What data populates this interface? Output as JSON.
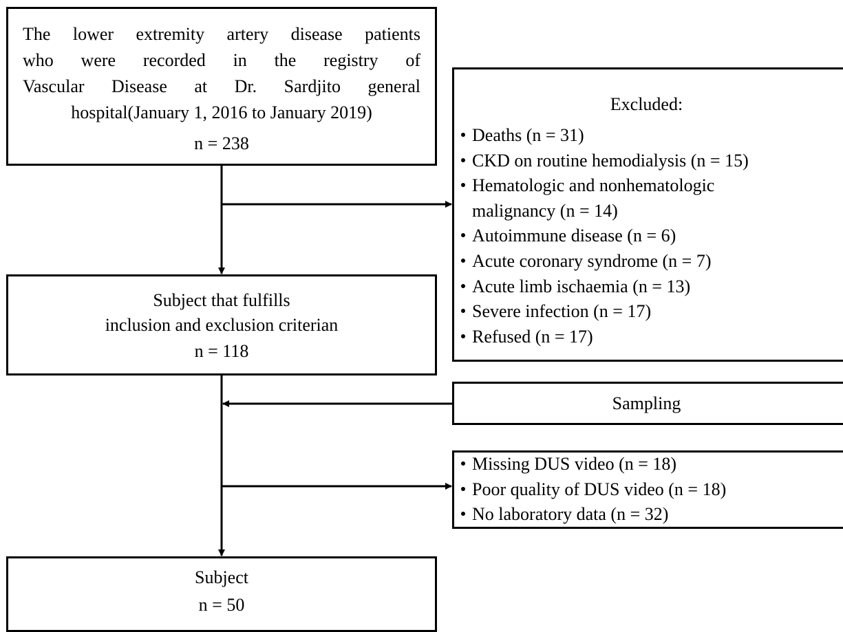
{
  "nodes": [
    {
      "lines": [
        "The lower extremity artery disease patients",
        "who were recorded in the registry of",
        "Vascular Disease at Dr. Sardjito general",
        "hospital(January 1, 2016 to January 2019)",
        "n = 238"
      ]
    },
    {
      "lines": [
        "Subject that fulfills",
        "inclusion and exclusion criterian",
        "n = 118"
      ]
    },
    {
      "lines": [
        "Subject",
        "n = 50"
      ]
    }
  ],
  "excluded": {
    "title": "Excluded:",
    "items": [
      [
        "Deaths (n = 31)"
      ],
      [
        "CKD on routine hemodialysis (n = 15)"
      ],
      [
        "Hematologic and nonhematologic",
        "malignancy (n = 14)"
      ],
      [
        "Autoimmune disease (n = 6)"
      ],
      [
        "Acute coronary syndrome (n = 7)"
      ],
      [
        "Acute limb ischaemia (n = 13)"
      ],
      [
        "Severe infection (n = 17)"
      ],
      [
        "Refused (n = 17)"
      ]
    ]
  },
  "sampling": "Sampling",
  "excluded_2": {
    "items": [
      [
        "Missing DUS video (n = 18)"
      ],
      [
        "Poor quality of DUS video (n = 18)"
      ],
      [
        "No laboratory data (n = 32)"
      ]
    ]
  }
}
